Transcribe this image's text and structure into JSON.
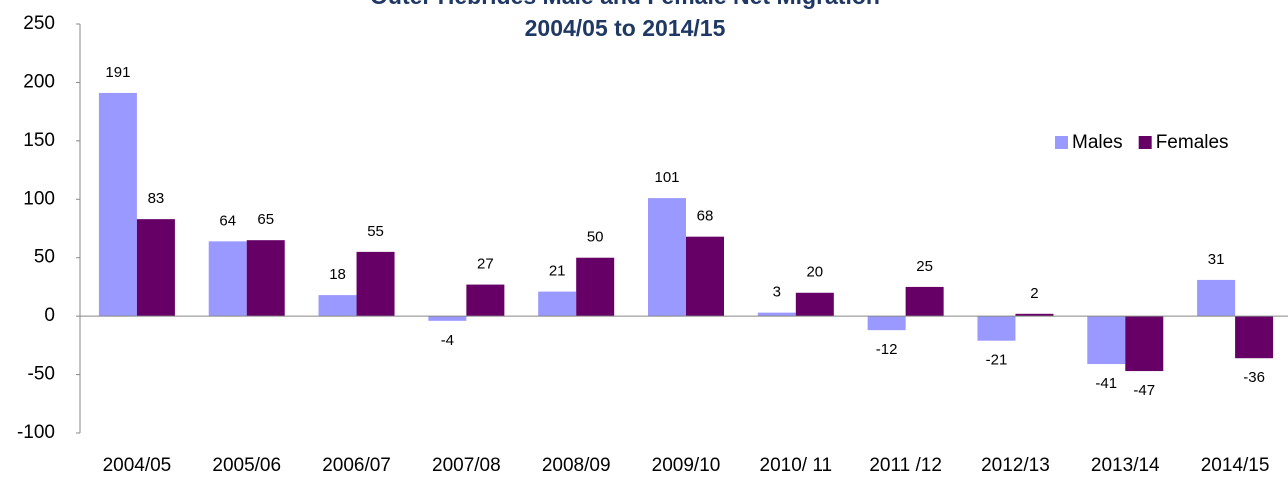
{
  "chart_data": {
    "type": "bar",
    "title": "Outer Hebrides Male and Female Net Migration",
    "subtitle": "2004/05 to 2014/15",
    "categories": [
      "2004/05",
      "2005/06",
      "2006/07",
      "2007/08",
      "2008/09",
      "2009/10",
      "2010/ 11",
      "2011 /12",
      "2012/13",
      "2013/14",
      "2014/15"
    ],
    "series": [
      {
        "name": "Males",
        "color": "#9999ff",
        "values": [
          191,
          64,
          18,
          -4,
          21,
          101,
          3,
          -12,
          -21,
          -41,
          31
        ]
      },
      {
        "name": "Females",
        "color": "#660066",
        "values": [
          83,
          65,
          55,
          27,
          50,
          68,
          20,
          25,
          2,
          -47,
          -36
        ]
      }
    ],
    "ylim": [
      -100,
      250
    ],
    "yticks": [
      -100,
      -50,
      0,
      50,
      100,
      150,
      200,
      250
    ],
    "grid": false,
    "legend": "top-right",
    "data_labels": true
  }
}
